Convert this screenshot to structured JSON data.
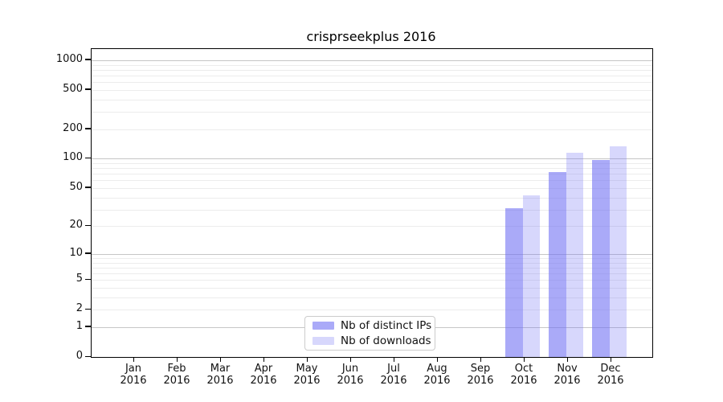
{
  "chart_data": {
    "type": "bar",
    "title": "crisprseekplus 2016",
    "categories": [
      "Jan",
      "Feb",
      "Mar",
      "Apr",
      "May",
      "Jun",
      "Jul",
      "Aug",
      "Sep",
      "Oct",
      "Nov",
      "Dec"
    ],
    "x_tick_year": "2016",
    "series": [
      {
        "name": "Nb of distinct IPs",
        "color": "rgba(113,113,243,0.6)",
        "values": [
          null,
          null,
          null,
          null,
          null,
          null,
          null,
          null,
          null,
          31,
          73,
          97
        ]
      },
      {
        "name": "Nb of downloads",
        "color": "rgba(113,113,243,0.28)",
        "values": [
          null,
          null,
          null,
          null,
          null,
          null,
          null,
          null,
          null,
          42,
          115,
          135
        ]
      }
    ],
    "y_scale": "log1p",
    "ylim": [
      0,
      1300
    ],
    "y_ticks": [
      0,
      1,
      2,
      5,
      10,
      20,
      50,
      100,
      200,
      500,
      1000
    ],
    "y_major_gridlines": [
      1,
      10,
      100,
      1000
    ],
    "y_minor_gridlines": [
      2,
      3,
      4,
      5,
      6,
      7,
      8,
      9,
      20,
      30,
      40,
      50,
      60,
      70,
      80,
      90,
      200,
      300,
      400,
      500,
      600,
      700,
      800,
      900
    ],
    "grid": true,
    "legend_position": "lower center"
  },
  "colors": {
    "major_grid": "#c6c6c6",
    "minor_grid": "#ececec",
    "spine": "#000000",
    "legend_border": "#cccccc"
  }
}
